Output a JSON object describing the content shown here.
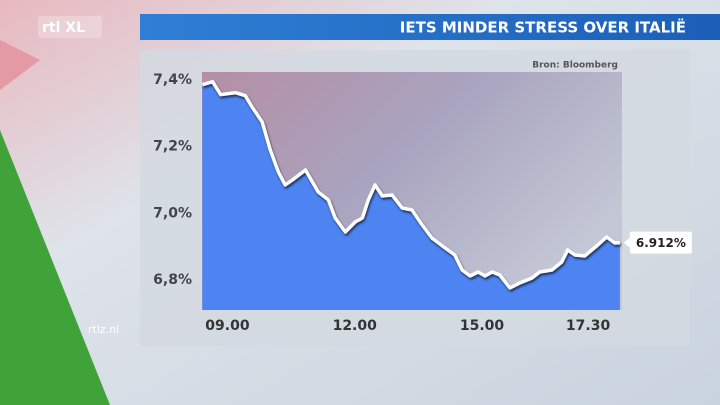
{
  "logo": "rtl XL",
  "website": "rtlz.nl",
  "chart_data": {
    "type": "area",
    "title": "IETS MINDER STRESS OVER ITALIË",
    "source": "Bron: Bloomberg",
    "x": [
      8.41,
      8.65,
      8.84,
      9.19,
      9.42,
      9.59,
      9.82,
      10.01,
      10.2,
      10.36,
      10.53,
      10.84,
      11.14,
      11.38,
      11.54,
      11.78,
      12.01,
      12.18,
      12.32,
      12.48,
      12.65,
      12.88,
      13.12,
      13.35,
      13.59,
      13.82,
      14.13,
      14.36,
      14.53,
      14.72,
      14.91,
      15.07,
      15.24,
      15.42,
      15.66,
      15.89,
      16.18,
      16.36,
      16.65,
      16.88,
      17.02,
      17.19,
      17.42,
      17.73,
      17.94,
      18.13,
      18.25
    ],
    "values": [
      7.386,
      7.395,
      7.356,
      7.362,
      7.353,
      7.317,
      7.274,
      7.19,
      7.124,
      7.085,
      7.1,
      7.13,
      7.064,
      7.04,
      6.986,
      6.944,
      6.974,
      6.986,
      7.04,
      7.085,
      7.052,
      7.055,
      7.016,
      7.01,
      6.965,
      6.926,
      6.896,
      6.875,
      6.83,
      6.812,
      6.824,
      6.812,
      6.824,
      6.815,
      6.776,
      6.791,
      6.806,
      6.824,
      6.83,
      6.854,
      6.89,
      6.875,
      6.872,
      6.905,
      6.929,
      6.911,
      6.912
    ],
    "value_labels": [
      null,
      null,
      null,
      null,
      null,
      null,
      null,
      null,
      null,
      null,
      null,
      null,
      null,
      null,
      null,
      null,
      null,
      null,
      null,
      null,
      null,
      null,
      null,
      null,
      null,
      null,
      null,
      null,
      null,
      null,
      null,
      null,
      null,
      null,
      null,
      null,
      null,
      null,
      null,
      null,
      null,
      null,
      null,
      null,
      null,
      null,
      "6.912%"
    ],
    "color": "#4d84f2",
    "line_color": "#ffffff",
    "xlim": [
      8.4,
      18.3
    ],
    "xticks": [
      {
        "value": 9,
        "label": "09.00"
      },
      {
        "value": 12,
        "label": "12.00"
      },
      {
        "value": 15,
        "label": "15.00"
      },
      {
        "value": 17.5,
        "label": "17.30"
      }
    ],
    "ylim": [
      6.71,
      7.424
    ],
    "yticks": [
      {
        "value": 7.4,
        "label": "7,4%"
      },
      {
        "value": 7.2,
        "label": "7,2%"
      },
      {
        "value": 7.0,
        "label": "7,0%"
      },
      {
        "value": 6.8,
        "label": "6,8%"
      }
    ],
    "grid": false
  }
}
